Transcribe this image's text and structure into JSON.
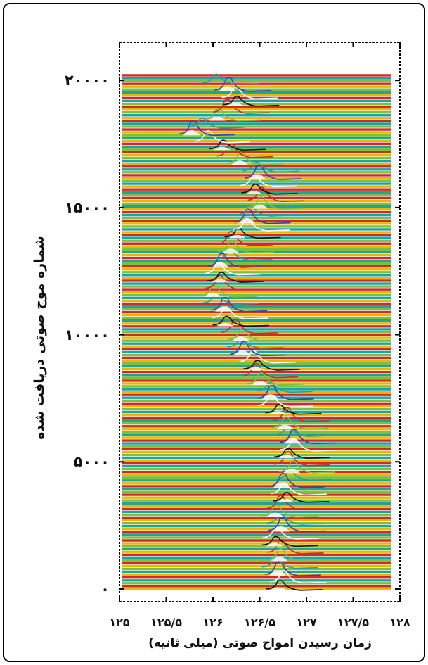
{
  "chart_data": {
    "type": "line",
    "title": "",
    "xlabel": "زمان رسیدن امواج صوتی (میلی ثانیه)",
    "ylabel": "شماره موج صوتی دریافت شده",
    "xlim": [
      125,
      128
    ],
    "ylim": [
      -500,
      21500
    ],
    "x_ticks": [
      {
        "value": 125,
        "label": "۱۲۵"
      },
      {
        "value": 125.5,
        "label": "۱۲۵/۵"
      },
      {
        "value": 126,
        "label": "۱۲۶"
      },
      {
        "value": 126.5,
        "label": "۱۲۶/۵"
      },
      {
        "value": 127,
        "label": "۱۲۷"
      },
      {
        "value": 127.5,
        "label": "۱۲۷/۵"
      },
      {
        "value": 128,
        "label": "۱۲۸"
      }
    ],
    "y_ticks": [
      {
        "value": 0,
        "label": "۰"
      },
      {
        "value": 5000,
        "label": "۵۰۰۰"
      },
      {
        "value": 10000,
        "label": "۱۰۰۰۰"
      },
      {
        "value": 15000,
        "label": "۱۵۰۰۰"
      },
      {
        "value": 20000,
        "label": "۲۰۰۰۰"
      }
    ],
    "waveforms_range": [
      0,
      20200
    ],
    "arrival_peaks": [
      {
        "wave": 300,
        "time": 126.72
      },
      {
        "wave": 1500,
        "time": 126.7
      },
      {
        "wave": 3000,
        "time": 126.72
      },
      {
        "wave": 4500,
        "time": 126.82
      },
      {
        "wave": 6000,
        "time": 126.85
      },
      {
        "wave": 7500,
        "time": 126.62
      },
      {
        "wave": 9000,
        "time": 126.4
      },
      {
        "wave": 10200,
        "time": 126.22
      },
      {
        "wave": 11200,
        "time": 126.05
      },
      {
        "wave": 12000,
        "time": 126.05
      },
      {
        "wave": 13000,
        "time": 126.15
      },
      {
        "wave": 14000,
        "time": 126.3
      },
      {
        "wave": 15000,
        "time": 126.5
      },
      {
        "wave": 16500,
        "time": 126.45
      },
      {
        "wave": 17200,
        "time": 126.12
      },
      {
        "wave": 18000,
        "time": 125.78
      },
      {
        "wave": 19000,
        "time": 126.3
      },
      {
        "wave": 20000,
        "time": 126.05
      }
    ],
    "trace_colors": [
      "#e8b800",
      "#f28a1e",
      "#1fa3a0",
      "#c24a9e",
      "#d22a25",
      "#3b3eb3",
      "#7ac143",
      "#111111"
    ],
    "grid": false,
    "legend": "none"
  }
}
